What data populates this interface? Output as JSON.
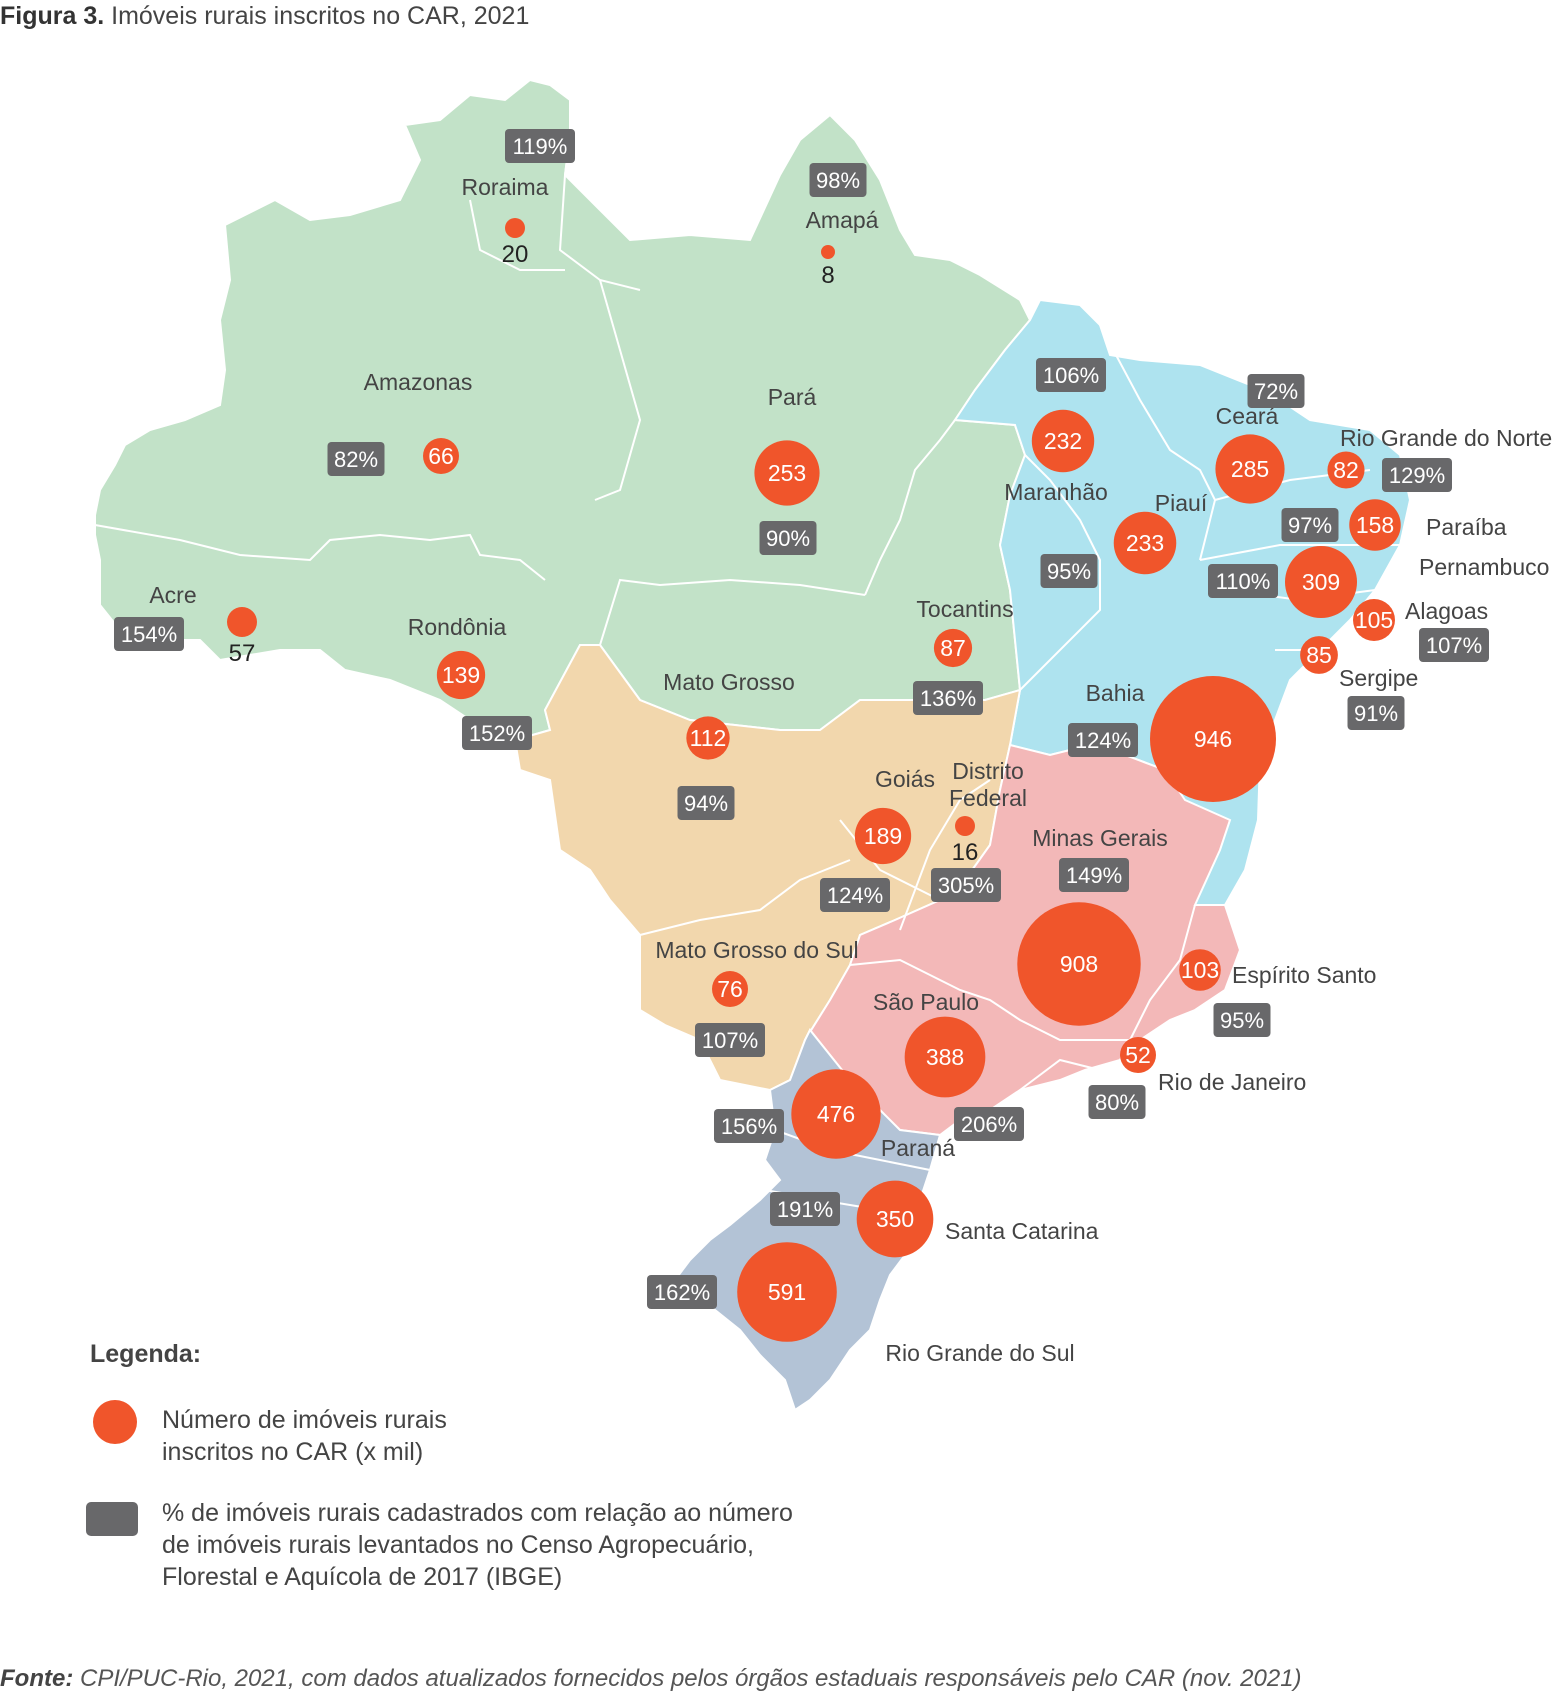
{
  "title": {
    "prefix": "Figura 3.",
    "text": " Imóveis rurais inscritos no CAR, 2021"
  },
  "colors": {
    "norte": "#c2e2c8",
    "nordeste": "#aee3ef",
    "centro_oeste": "#f2d7ad",
    "sudeste": "#f3b8b8",
    "sul": "#b3c3d6",
    "bubble": "#f0552b",
    "badge": "#68686a"
  },
  "states": [
    {
      "name": "Roraima",
      "count": "20",
      "pct": "119%"
    },
    {
      "name": "Amapá",
      "count": "8",
      "pct": "98%"
    },
    {
      "name": "Amazonas",
      "count": "66",
      "pct": "82%"
    },
    {
      "name": "Pará",
      "count": "253",
      "pct": "90%"
    },
    {
      "name": "Acre",
      "count": "57",
      "pct": "154%"
    },
    {
      "name": "Rondônia",
      "count": "139",
      "pct": "152%"
    },
    {
      "name": "Tocantins",
      "count": "87",
      "pct": "136%"
    },
    {
      "name": "Maranhão",
      "count": "232",
      "pct": "106%"
    },
    {
      "name": "Piauí",
      "count": "233",
      "pct": "95%"
    },
    {
      "name": "Ceará",
      "count": "285",
      "pct": "72%"
    },
    {
      "name": "Rio Grande do Norte",
      "count": "82",
      "pct": "129%"
    },
    {
      "name": "Paraíba",
      "count": "158",
      "pct": "97%"
    },
    {
      "name": "Pernambuco",
      "count": "309",
      "pct": "110%"
    },
    {
      "name": "Alagoas",
      "count": "105",
      "pct": "107%"
    },
    {
      "name": "Sergipe",
      "count": "85",
      "pct": "91%"
    },
    {
      "name": "Bahia",
      "count": "946",
      "pct": "124%"
    },
    {
      "name": "Mato Grosso",
      "count": "112",
      "pct": "94%"
    },
    {
      "name": "Goiás",
      "count": "189",
      "pct": "124%"
    },
    {
      "name": "Distrito Federal",
      "count": "16",
      "pct": "305%"
    },
    {
      "name": "Minas Gerais",
      "count": "908",
      "pct": "149%"
    },
    {
      "name": "Espírito Santo",
      "count": "103",
      "pct": "95%"
    },
    {
      "name": "Rio de Janeiro",
      "count": "52",
      "pct": "80%"
    },
    {
      "name": "São Paulo",
      "count": "388",
      "pct": "206%"
    },
    {
      "name": "Mato Grosso do Sul",
      "count": "76",
      "pct": "107%"
    },
    {
      "name": "Paraná",
      "count": "476",
      "pct": "156%"
    },
    {
      "name": "Santa Catarina",
      "count": "350",
      "pct": "191%"
    },
    {
      "name": "Rio Grande do Sul",
      "count": "591",
      "pct": "162%"
    }
  ],
  "legend": {
    "heading": "Legenda:",
    "items": [
      {
        "icon": "orange-circle",
        "text": "Número de imóveis rurais\ninscritos no CAR (x mil)"
      },
      {
        "icon": "gray-rounded-rect",
        "text": "% de imóveis rurais cadastrados com relação ao número\nde imóveis rurais levantados no Censo Agropecuário,\nFlorestal e Aquícola de 2017 (IBGE)"
      }
    ]
  },
  "source": {
    "prefix": "Fonte:",
    "text": " CPI/PUC-Rio, 2021, com dados atualizados fornecidos pelos órgãos estaduais responsáveis pelo CAR (nov. 2021)"
  }
}
